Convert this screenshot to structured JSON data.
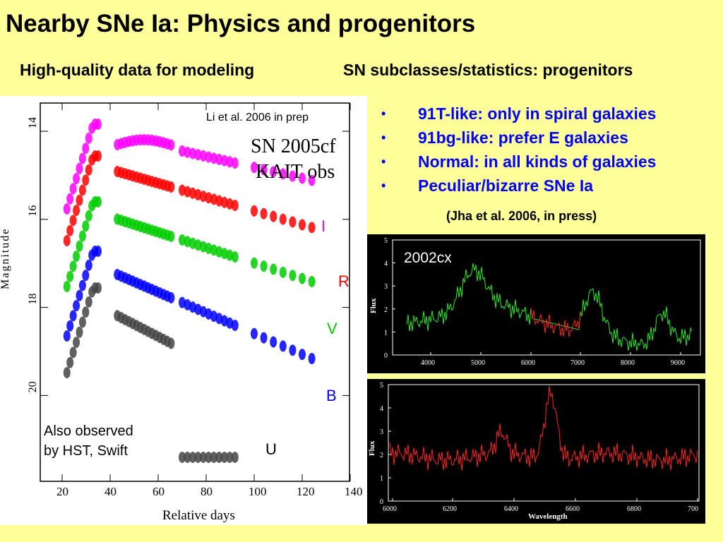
{
  "slide": {
    "title": "Nearby SNe Ia: Physics and progenitors",
    "subtitle_left": "High-quality data for modeling",
    "subtitle_right": "SN subclasses/statistics: progenitors",
    "bullets": [
      "91T-like: only in spiral galaxies",
      "91bg-like: prefer E galaxies",
      "Normal: in all kinds of galaxies",
      "Peculiar/bizarre SNe Ia"
    ],
    "reference": "(Jha et al. 2006, in press)"
  },
  "lightcurve": {
    "credit": "Li et al. 2006 in prep",
    "sn_name": "SN 2005cf",
    "survey": "KAIT obs",
    "ylabel": "Magnitude",
    "xlabel": "Relative days",
    "note_line1": "Also observed",
    "note_line2": "by HST, Swift",
    "bands": [
      {
        "name": "I",
        "color": "#ff00ff"
      },
      {
        "name": "R",
        "color": "#ff0000"
      },
      {
        "name": "V",
        "color": "#00cc00"
      },
      {
        "name": "B",
        "color": "#0000ff"
      },
      {
        "name": "U",
        "color": "#000000"
      }
    ],
    "x_ticks": [
      "20",
      "40",
      "60",
      "80",
      "100",
      "120",
      "140"
    ],
    "y_ticks": [
      "14",
      "16",
      "18",
      "20"
    ]
  },
  "spectrum_top": {
    "label": "2002cx",
    "ylabel": "Flux",
    "x_ticks": [
      "4000",
      "5000",
      "6000",
      "7000",
      "8000",
      "9000"
    ],
    "y_ticks": [
      "0",
      "1",
      "2",
      "3",
      "4",
      "5"
    ]
  },
  "spectrum_bottom": {
    "ylabel": "Flux",
    "xlabel": "Wavelength",
    "x_ticks": [
      "6000",
      "6200",
      "6400",
      "6600",
      "6800",
      "700"
    ],
    "y_ticks": [
      "0",
      "1",
      "2",
      "3",
      "4",
      "5"
    ]
  },
  "colors": {
    "background": "#ffff99",
    "bullet_text": "#0000ff",
    "spectrum_green": "#22ee22",
    "spectrum_red": "#ff2222"
  }
}
